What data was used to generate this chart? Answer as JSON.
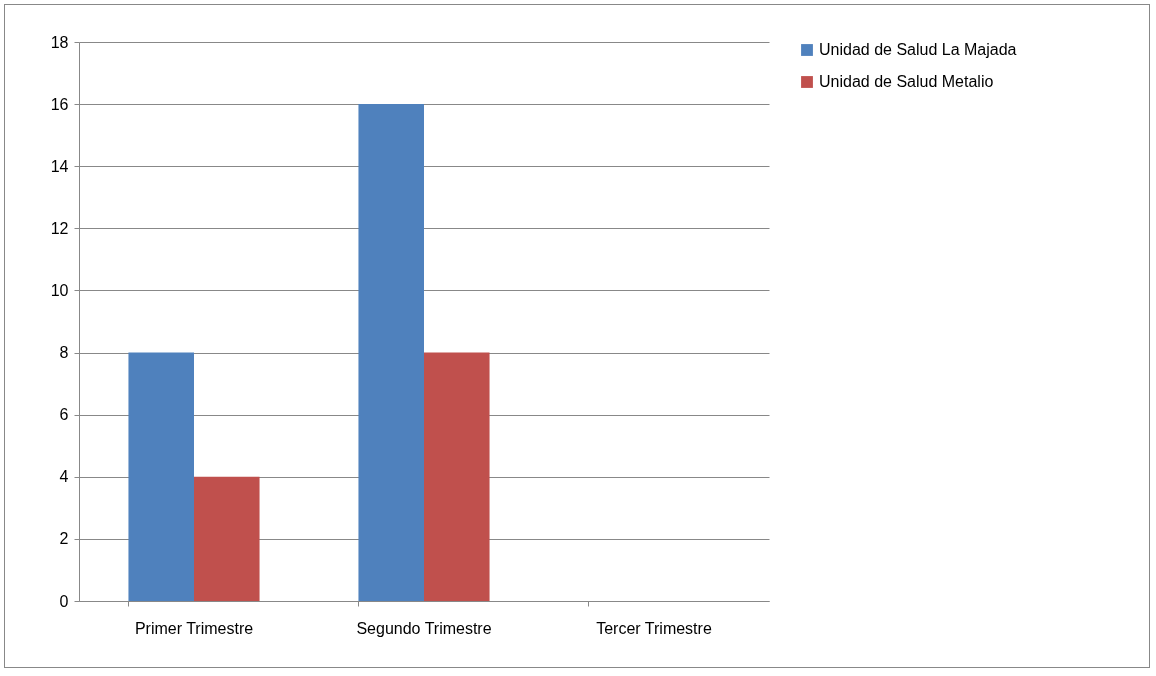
{
  "chart_data": {
    "type": "bar",
    "categories": [
      "Primer Trimestre",
      "Segundo Trimestre",
      "Tercer Trimestre"
    ],
    "series": [
      {
        "name": "Unidad de Salud La Majada",
        "color": "#4f81bd",
        "values": [
          8,
          16,
          0
        ]
      },
      {
        "name": "Unidad de Salud Metalio",
        "color": "#c0504d",
        "values": [
          4,
          8,
          0
        ]
      }
    ],
    "ylim": [
      0,
      18
    ],
    "yticks": [
      0,
      2,
      4,
      6,
      8,
      10,
      12,
      14,
      16,
      18
    ],
    "grid": "y",
    "legend": "right"
  }
}
